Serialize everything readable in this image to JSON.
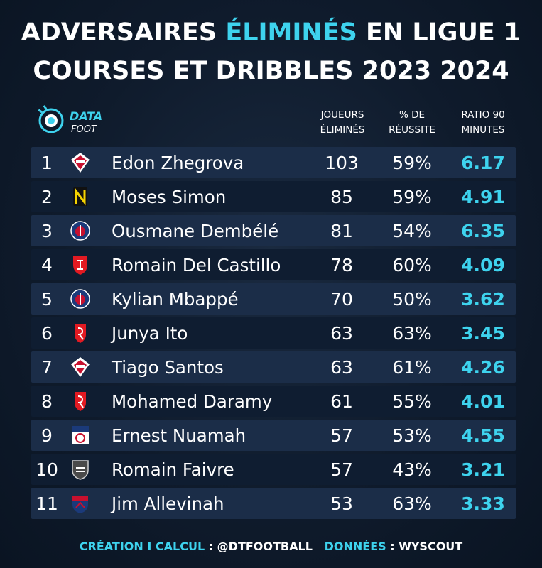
{
  "title": {
    "line1_a": "ADVERSAIRES ",
    "line1_accent": "ÉLIMINÉS",
    "line1_b": " EN LIGUE 1",
    "line2": "COURSES ET DRIBBLES 2023 2024"
  },
  "logo": {
    "text": "DATA",
    "sub": "FOOT"
  },
  "columns": {
    "joueurs": [
      "JOUEURS",
      "ÉLIMINÉS"
    ],
    "pct": [
      "% DE",
      "RÉUSSITE"
    ],
    "ratio": [
      "RATIO 90",
      "MINUTES"
    ]
  },
  "colors": {
    "accent": "#3ed3ee",
    "row_light": "#1b2d48",
    "row_dark": "#0f1d31"
  },
  "chart_data": {
    "type": "table",
    "headers": [
      "JOUEURS ÉLIMINÉS",
      "% DE RÉUSSITE",
      "RATIO 90 MINUTES"
    ],
    "rows": [
      {
        "rank": "1",
        "club": "lille-crest-icon",
        "name": "Edon Zhegrova",
        "joueurs": "103",
        "pct": "59%",
        "ratio": "6.17"
      },
      {
        "rank": "2",
        "club": "nantes-crest-icon",
        "name": "Moses Simon",
        "joueurs": "85",
        "pct": "59%",
        "ratio": "4.91"
      },
      {
        "rank": "3",
        "club": "psg-crest-icon",
        "name": "Ousmane Dembélé",
        "joueurs": "81",
        "pct": "54%",
        "ratio": "6.35"
      },
      {
        "rank": "4",
        "club": "brest-crest-icon",
        "name": "Romain Del Castillo",
        "joueurs": "78",
        "pct": "60%",
        "ratio": "4.09"
      },
      {
        "rank": "5",
        "club": "psg-crest-icon",
        "name": "Kylian Mbappé",
        "joueurs": "70",
        "pct": "50%",
        "ratio": "3.62"
      },
      {
        "rank": "6",
        "club": "reims-crest-icon",
        "name": "Junya Ito",
        "joueurs": "63",
        "pct": "63%",
        "ratio": "3.45"
      },
      {
        "rank": "7",
        "club": "lille-crest-icon",
        "name": "Tiago Santos",
        "joueurs": "63",
        "pct": "61%",
        "ratio": "4.26"
      },
      {
        "rank": "8",
        "club": "reims-crest-icon",
        "name": "Mohamed Daramy",
        "joueurs": "61",
        "pct": "55%",
        "ratio": "4.01"
      },
      {
        "rank": "9",
        "club": "lyon-crest-icon",
        "name": "Ernest Nuamah",
        "joueurs": "57",
        "pct": "53%",
        "ratio": "4.55"
      },
      {
        "rank": "10",
        "club": "lorient-crest-icon",
        "name": "Romain Faivre",
        "joueurs": "57",
        "pct": "43%",
        "ratio": "3.21"
      },
      {
        "rank": "11",
        "club": "clermont-crest-icon",
        "name": "Jim Allevinah",
        "joueurs": "53",
        "pct": "63%",
        "ratio": "3.33"
      }
    ]
  },
  "footer": {
    "label1": "CRÉATION I CALCUL",
    "value1": " : @DTFOOTBALL",
    "label2": "DONNÉES",
    "value2": " : WYSCOUT"
  }
}
